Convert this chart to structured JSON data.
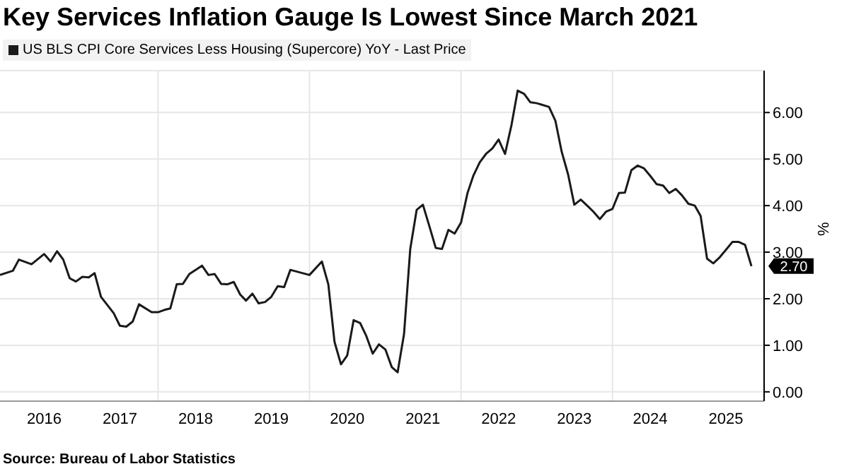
{
  "chart_data": {
    "type": "line",
    "title": "Key Services Inflation Gauge Is Lowest Since March 2021",
    "ylabel": "%",
    "annotations": [
      "Source: Bureau of Labor Statistics",
      {
        "text": "2.70",
        "x": "2025-11",
        "y": 2.7
      }
    ],
    "legend": "top left",
    "grid": true,
    "marker": "none",
    "line_style": "solid",
    "xlim": [
      "2015-12",
      "2026-01"
    ],
    "xticks": [
      {
        "value": "2016-07",
        "label": "2016"
      },
      {
        "value": "2017-07",
        "label": "2017"
      },
      {
        "value": "2018-01",
        "label": null
      },
      {
        "value": "2018-07",
        "label": "2018"
      },
      {
        "value": "2019-07",
        "label": "2019"
      },
      {
        "value": "2020-01",
        "label": null
      },
      {
        "value": "2020-07",
        "label": "2020"
      },
      {
        "value": "2021-07",
        "label": "2021"
      },
      {
        "value": "2022-01",
        "label": null
      },
      {
        "value": "2022-07",
        "label": "2022"
      },
      {
        "value": "2023-07",
        "label": "2023"
      },
      {
        "value": "2024-01",
        "label": null
      },
      {
        "value": "2024-07",
        "label": "2024"
      },
      {
        "value": "2025-07",
        "label": "2025"
      }
    ],
    "ylim": [
      -0.2,
      6.9
    ],
    "yticks": [
      {
        "value": 0,
        "label": "0.00"
      },
      {
        "value": 1,
        "label": "1.00"
      },
      {
        "value": 2,
        "label": "2.00"
      },
      {
        "value": 3,
        "label": "3.00"
      },
      {
        "value": 4,
        "label": "4.00"
      },
      {
        "value": 5,
        "label": "5.00"
      },
      {
        "value": 6,
        "label": "6.00"
      }
    ],
    "x": [
      "2015-12",
      "2016-02",
      "2016-03",
      "2016-05",
      "2016-07",
      "2016-08",
      "2016-09",
      "2016-10",
      "2016-11",
      "2016-12",
      "2017-01",
      "2017-02",
      "2017-03",
      "2017-04",
      "2017-06",
      "2017-07",
      "2017-08",
      "2017-09",
      "2017-10",
      "2017-12",
      "2018-01",
      "2018-02",
      "2018-03",
      "2018-04",
      "2018-05",
      "2018-06",
      "2018-08",
      "2018-09",
      "2018-10",
      "2018-11",
      "2018-12",
      "2019-01",
      "2019-02",
      "2019-03",
      "2019-04",
      "2019-05",
      "2019-06",
      "2019-07",
      "2019-08",
      "2019-09",
      "2019-10",
      "2020-01",
      "2020-03",
      "2020-04",
      "2020-05",
      "2020-06",
      "2020-07",
      "2020-08",
      "2020-09",
      "2020-10",
      "2020-11",
      "2020-12",
      "2021-01",
      "2021-02",
      "2021-03",
      "2021-04",
      "2021-05",
      "2021-06",
      "2021-07",
      "2021-08",
      "2021-09",
      "2021-10",
      "2021-11",
      "2021-12",
      "2022-01",
      "2022-02",
      "2022-03",
      "2022-04",
      "2022-05",
      "2022-06",
      "2022-07",
      "2022-08",
      "2022-09",
      "2022-10",
      "2022-11",
      "2022-12",
      "2023-01",
      "2023-03",
      "2023-04",
      "2023-05",
      "2023-06",
      "2023-07",
      "2023-08",
      "2023-09",
      "2023-10",
      "2023-11",
      "2023-12",
      "2024-01",
      "2024-02",
      "2024-03",
      "2024-04",
      "2024-05",
      "2024-06",
      "2024-07",
      "2024-08",
      "2024-09",
      "2024-10",
      "2024-11",
      "2024-12",
      "2025-01",
      "2025-02",
      "2025-03",
      "2025-04",
      "2025-05",
      "2025-06",
      "2025-07",
      "2025-08",
      "2025-09",
      "2025-10",
      "2025-11"
    ],
    "series": [
      {
        "name": "US BLS CPI Core Services Less Housing (Supercore) YoY - Last Price",
        "color": "#1a1a1a",
        "values": [
          2.51,
          2.6,
          2.84,
          2.74,
          2.96,
          2.8,
          3.02,
          2.84,
          2.44,
          2.37,
          2.47,
          2.46,
          2.55,
          2.04,
          1.69,
          1.42,
          1.4,
          1.51,
          1.88,
          1.71,
          1.71,
          1.76,
          1.79,
          2.31,
          2.32,
          2.53,
          2.71,
          2.51,
          2.53,
          2.32,
          2.31,
          2.36,
          2.09,
          1.96,
          2.11,
          1.9,
          1.93,
          2.04,
          2.27,
          2.25,
          2.62,
          2.51,
          2.8,
          2.31,
          1.07,
          0.59,
          0.78,
          1.54,
          1.48,
          1.2,
          0.82,
          1.02,
          0.91,
          0.53,
          0.42,
          1.24,
          3.07,
          3.91,
          4.02,
          3.56,
          3.09,
          3.07,
          3.48,
          3.4,
          3.64,
          4.27,
          4.64,
          4.93,
          5.11,
          5.23,
          5.42,
          5.11,
          5.73,
          6.47,
          6.4,
          6.22,
          6.2,
          6.12,
          5.82,
          5.16,
          4.67,
          4.02,
          4.13,
          4.0,
          3.87,
          3.71,
          3.87,
          3.93,
          4.27,
          4.28,
          4.76,
          4.86,
          4.8,
          4.64,
          4.46,
          4.43,
          4.27,
          4.36,
          4.22,
          4.04,
          4.0,
          3.78,
          2.86,
          2.76,
          2.89,
          3.05,
          3.22,
          3.22,
          3.16,
          2.7
        ]
      }
    ]
  }
}
